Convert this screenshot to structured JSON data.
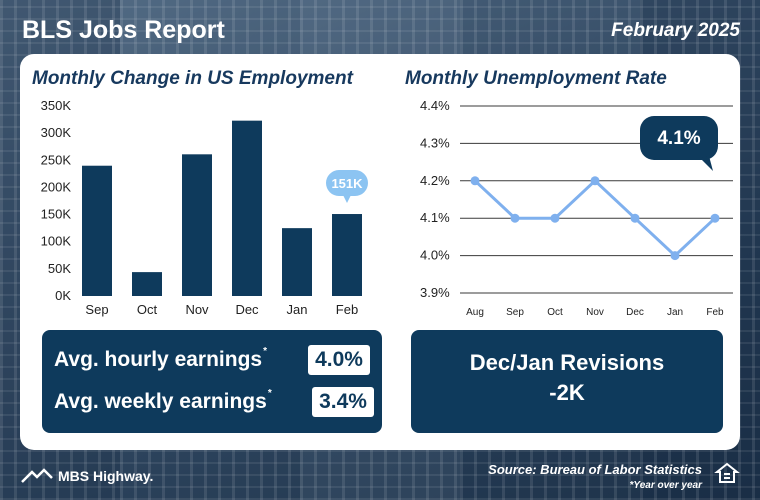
{
  "header": {
    "title": "BLS Jobs Report",
    "date": "February 2025"
  },
  "employment": {
    "title": "Monthly Change in US Employment",
    "callout": "151K"
  },
  "unemployment": {
    "title": "Monthly Unemployment Rate",
    "callout": "4.1%"
  },
  "earnings": {
    "hourly_label": "Avg. hourly earnings",
    "hourly_value": "4.0%",
    "weekly_label": "Avg. weekly earnings",
    "weekly_value": "3.4%",
    "asterisk": "*"
  },
  "revisions": {
    "title": "Dec/Jan Revisions",
    "value": "-2K"
  },
  "footer": {
    "brand": "MBS Highway.",
    "source": "Source: Bureau of Labor Statistics",
    "footnote": "*Year over year"
  },
  "colors": {
    "navy": "#0e3a5c",
    "line_blue": "#7fb0ee",
    "callout_blue": "#8cc4f2"
  },
  "chart_data": [
    {
      "type": "bar",
      "title": "Monthly Change in US Employment",
      "categories": [
        "Sep",
        "Oct",
        "Nov",
        "Dec",
        "Jan",
        "Feb"
      ],
      "values": [
        240000,
        44000,
        261000,
        323000,
        125000,
        151000
      ],
      "ylim": [
        0,
        350000
      ],
      "yticks": [
        0,
        50000,
        100000,
        150000,
        200000,
        250000,
        300000,
        350000
      ],
      "ytick_labels": [
        "0K",
        "50K",
        "100K",
        "150K",
        "200K",
        "250K",
        "300K",
        "350K"
      ],
      "grid": false
    },
    {
      "type": "line",
      "title": "Monthly Unemployment Rate",
      "categories": [
        "Aug",
        "Sep",
        "Oct",
        "Nov",
        "Dec",
        "Jan",
        "Feb"
      ],
      "values": [
        4.2,
        4.1,
        4.1,
        4.2,
        4.1,
        4.0,
        4.1
      ],
      "ylim": [
        3.9,
        4.4
      ],
      "yticks": [
        3.9,
        4.0,
        4.1,
        4.2,
        4.3,
        4.4
      ],
      "ytick_labels": [
        "3.9%",
        "4.0%",
        "4.1%",
        "4.2%",
        "4.3%",
        "4.4%"
      ],
      "grid": true
    }
  ]
}
